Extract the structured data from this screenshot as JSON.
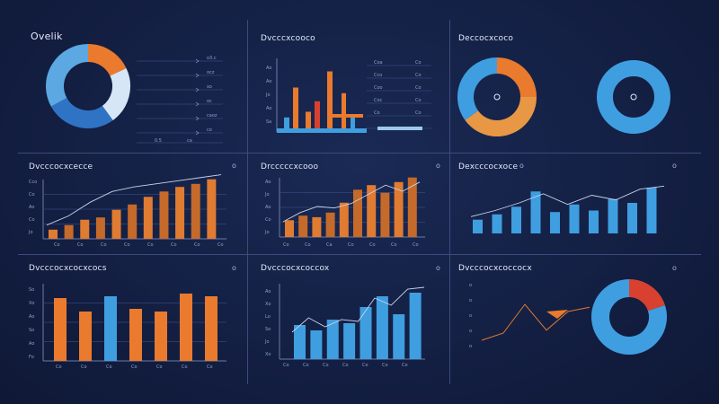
{
  "panels": {
    "p1": {
      "title": "Ovelik",
      "dot": ""
    },
    "p2": {
      "title": "Dvcccxcooco",
      "dot": ""
    },
    "p3": {
      "title": "Deccocxcoco",
      "dot": ""
    },
    "p4": {
      "title": "Dvcccocxcecce",
      "dot": "o"
    },
    "p5": {
      "title": "Drcccccxcooo",
      "dot": "o"
    },
    "p6": {
      "title": "Dexcccocxoce",
      "dot": "o"
    },
    "p7": {
      "title": "Dvcccocxcocxcocs",
      "dot": "o"
    },
    "p8": {
      "title": "Dvcccocxcoccox",
      "dot": "o"
    },
    "p9": {
      "title": "Dvcccocxcoccocx",
      "dot": "o"
    }
  },
  "colors": {
    "orange": "#ea7a2e",
    "blue": "#3f9ee0",
    "light_blue": "#9cc8ee",
    "red": "#d8412f",
    "navy_ring": "#23418a"
  },
  "chart_data": [
    {
      "id": "p1",
      "type": "pie",
      "slices": [
        {
          "value": 18,
          "color": "#ea7a2e"
        },
        {
          "value": 22,
          "color": "#d6e6f6"
        },
        {
          "value": 27,
          "color": "#2f74c4"
        },
        {
          "value": 33,
          "color": "#5ba8e2"
        }
      ],
      "legend_rows": [
        {
          "label": "o3.c"
        },
        {
          "label": "ocz"
        },
        {
          "label": "xo"
        },
        {
          "label": "oc"
        },
        {
          "label": "caoz"
        },
        {
          "label": "co"
        }
      ],
      "footer": [
        "0.5",
        "ca"
      ]
    },
    {
      "id": "p2",
      "type": "bar",
      "ylabels": [
        "Ao",
        "Ao",
        "Jo",
        "Ao",
        "Sa"
      ],
      "bars": [
        {
          "value": 18,
          "color": "#3f9ee0"
        },
        {
          "value": 55,
          "color": "#ea7a2e"
        },
        {
          "value": 25,
          "color": "#ea7a2e"
        },
        {
          "value": 38,
          "color": "#d8412f"
        },
        {
          "value": 75,
          "color": "#ea7a2e"
        },
        {
          "value": 48,
          "color": "#ea7a2e"
        },
        {
          "value": 18,
          "color": "#3f9ee0"
        }
      ],
      "row_labels": [
        "Coa",
        "Cco",
        "Coo",
        "Coc",
        "Co"
      ]
    },
    {
      "id": "p3",
      "type": "pie",
      "slices": [
        {
          "value": 25,
          "color": "#ea7a2e"
        },
        {
          "value": 40,
          "color": "#e89745"
        },
        {
          "value": 35,
          "color": "#3f9ee0"
        }
      ],
      "second_ring": {
        "color": "#3f9ee0"
      }
    },
    {
      "id": "p4",
      "type": "bar",
      "ylabels": [
        "Cco",
        "Co",
        "Ao",
        "Co",
        "Jo"
      ],
      "xlabels": [
        "Co",
        "Co",
        "Co",
        "Co",
        "Co",
        "Co",
        "Co",
        "Co"
      ],
      "values": [
        12,
        18,
        25,
        28,
        38,
        45,
        55,
        62,
        68,
        72,
        78
      ],
      "line": [
        18,
        30,
        48,
        62,
        68,
        72,
        76,
        80,
        84
      ]
    },
    {
      "id": "p5",
      "type": "bar",
      "ylabels": [
        "Ao",
        "Jo",
        "Ao",
        "Co",
        "Jo"
      ],
      "xlabels": [
        "Co",
        "Co",
        "Ca",
        "Co",
        "Co",
        "Co",
        "Co"
      ],
      "values": [
        22,
        28,
        26,
        32,
        45,
        62,
        68,
        58,
        72,
        78
      ],
      "line": [
        20,
        32,
        40,
        38,
        44,
        56,
        68,
        60,
        72
      ]
    },
    {
      "id": "p6",
      "type": "bar",
      "values": [
        18,
        25,
        35,
        55,
        28,
        38,
        30,
        45,
        40,
        60
      ],
      "line": [
        22,
        30,
        40,
        52,
        38,
        50,
        44,
        58,
        62
      ]
    },
    {
      "id": "p7",
      "type": "bar",
      "ylabels": [
        "So",
        "Xo",
        "Ao",
        "So",
        "Ao",
        "Fo"
      ],
      "xlabels": [
        "Co",
        "Co",
        "Co",
        "Co",
        "Co",
        "Co",
        "Co"
      ],
      "bars": [
        {
          "value": 70,
          "color": "#ea7a2e"
        },
        {
          "value": 55,
          "color": "#ea7a2e"
        },
        {
          "value": 72,
          "color": "#3f9ee0"
        },
        {
          "value": 58,
          "color": "#ea7a2e"
        },
        {
          "value": 55,
          "color": "#ea7a2e"
        },
        {
          "value": 75,
          "color": "#ea7a2e"
        },
        {
          "value": 72,
          "color": "#ea7a2e"
        }
      ]
    },
    {
      "id": "p8",
      "type": "bar",
      "ylabels": [
        "Ao",
        "Xo",
        "Lo",
        "So",
        "Jo",
        "Xo"
      ],
      "xlabels": [
        "Co",
        "Co",
        "Co",
        "Co",
        "Co",
        "Co",
        "Co"
      ],
      "values": [
        38,
        32,
        44,
        40,
        58,
        70,
        50,
        74
      ],
      "line": [
        30,
        46,
        36,
        44,
        42,
        68,
        60,
        78,
        80
      ]
    },
    {
      "id": "p9",
      "type": "pie",
      "ylabels": [
        "o",
        "o",
        "o",
        "o",
        "o"
      ],
      "slices": [
        {
          "value": 20,
          "color": "#d8412f"
        },
        {
          "value": 80,
          "color": "#3f9ee0"
        }
      ],
      "line": [
        5,
        10,
        30,
        12,
        25,
        28
      ]
    }
  ]
}
